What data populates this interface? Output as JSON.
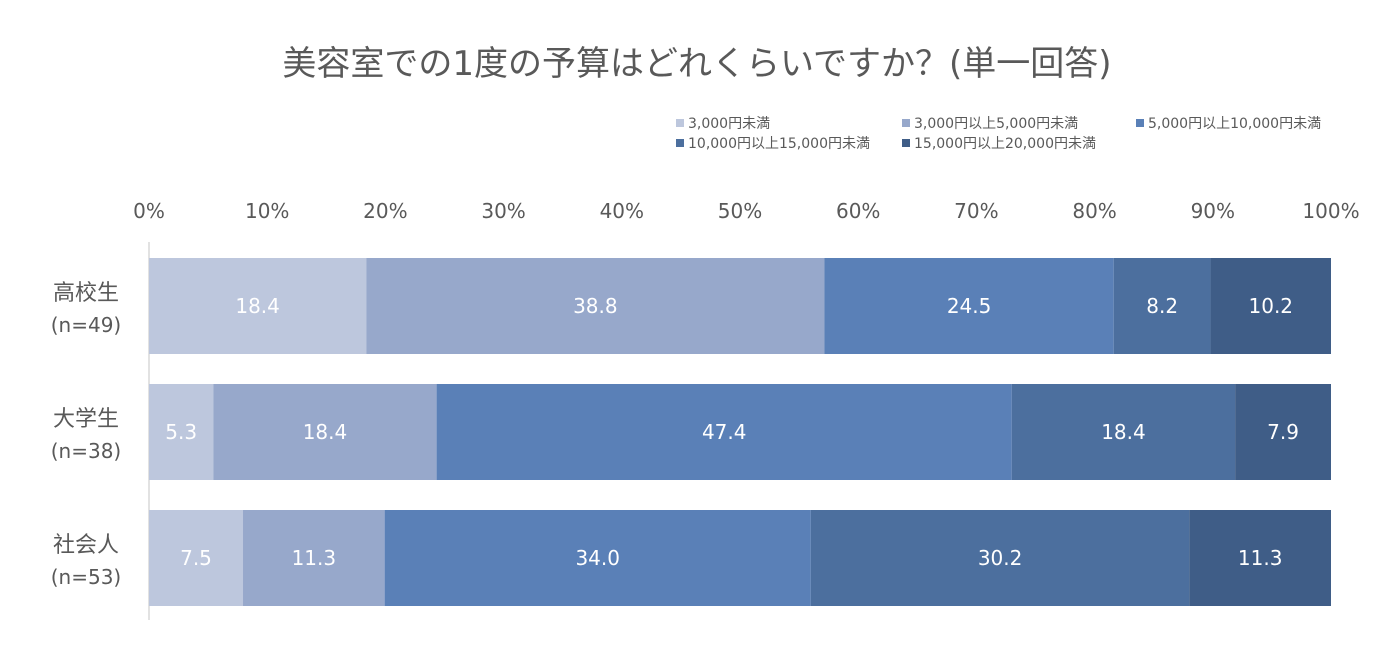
{
  "chart_data": {
    "type": "bar",
    "orientation": "horizontal",
    "stacked": true,
    "title": "美容室での1度の予算はどれくらいですか？(単一回答)",
    "categories": [
      {
        "name": "高校生",
        "n": "(n=49)"
      },
      {
        "name": "大学生",
        "n": "(n=38)"
      },
      {
        "name": "社会人",
        "n": "(n=53)"
      }
    ],
    "series": [
      {
        "name": "3,000円未満",
        "color": "#BDC7DD",
        "values": [
          18.4,
          5.3,
          7.5
        ]
      },
      {
        "name": "3,000円以上5,000円未満",
        "color": "#97A8CB",
        "values": [
          38.8,
          18.4,
          11.3
        ]
      },
      {
        "name": "5,000円以上10,000円未満",
        "color": "#5A80B7",
        "values": [
          24.5,
          47.4,
          34.0
        ]
      },
      {
        "name": "10,000円以上15,000円未満",
        "color": "#4C6F9E",
        "values": [
          8.2,
          18.4,
          30.2
        ]
      },
      {
        "name": "15,000円以上20,000円未満",
        "color": "#3F5D87",
        "values": [
          10.2,
          7.9,
          11.3
        ]
      }
    ],
    "x_ticks": [
      "0%",
      "10%",
      "20%",
      "30%",
      "40%",
      "50%",
      "60%",
      "70%",
      "80%",
      "90%",
      "100%"
    ],
    "xlim": [
      0,
      100
    ],
    "axis_position": "top",
    "legend_position": "top-right",
    "grid": false
  }
}
